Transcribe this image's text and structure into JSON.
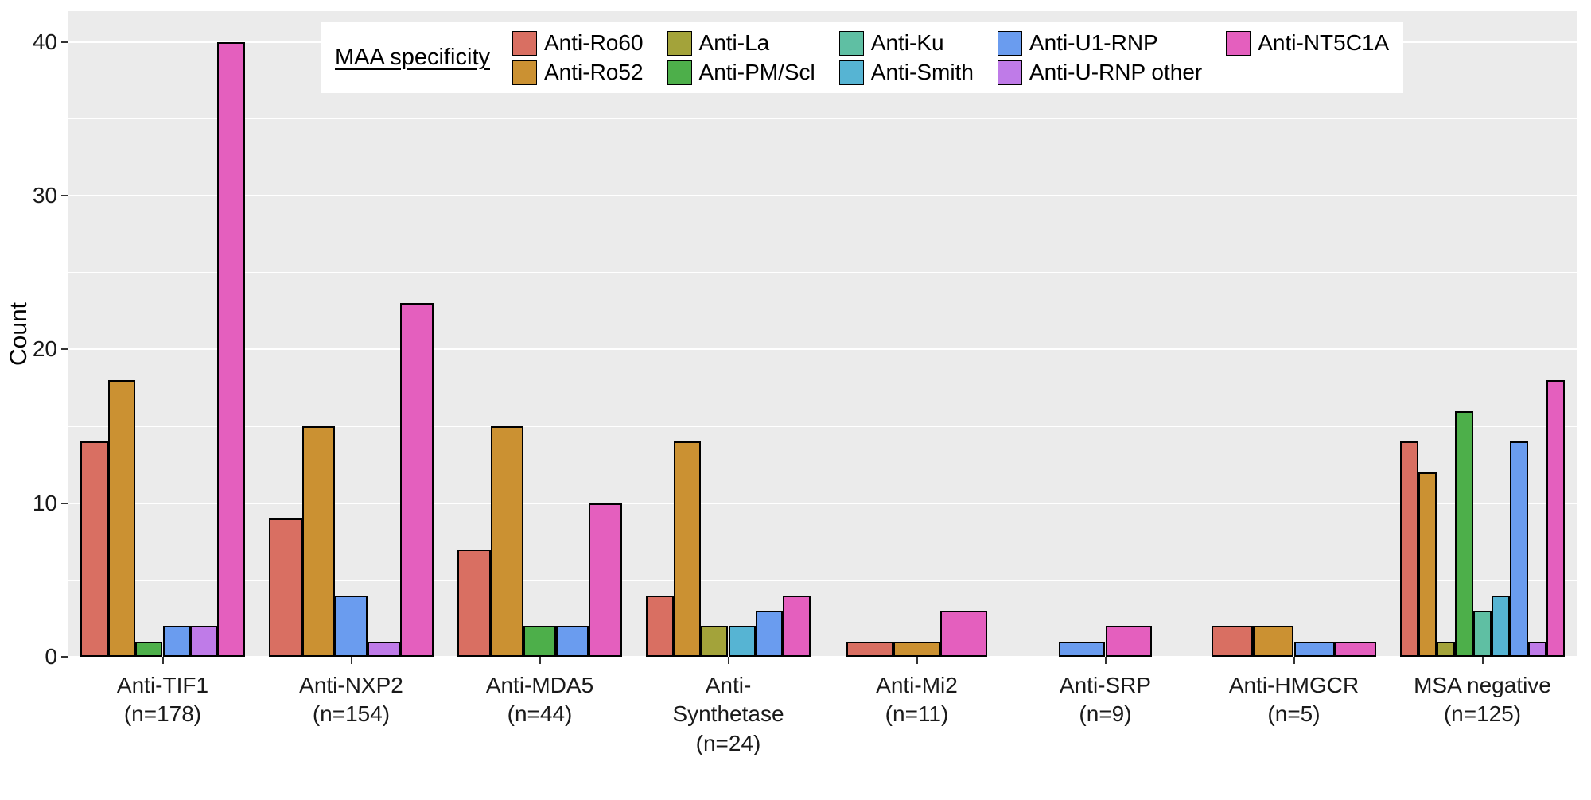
{
  "chart_data": {
    "type": "bar",
    "title": "",
    "xlabel": "",
    "ylabel": "Count",
    "ylim": [
      0,
      42
    ],
    "yticks": [
      0,
      10,
      20,
      30,
      40
    ],
    "yticks_minor": [
      5,
      15,
      25,
      35
    ],
    "grid": true,
    "plot_bg": "#EBEBEB",
    "grid_color": "#FFFFFF",
    "bar_outline": "#000000",
    "legend_title": "MAA specificity",
    "legend_position": "top-inside",
    "categories": [
      {
        "label": "Anti-TIF1 (n=178)",
        "lines": [
          "Anti-TIF1",
          "(n=178)"
        ]
      },
      {
        "label": "Anti-NXP2 (n=154)",
        "lines": [
          "Anti-NXP2",
          "(n=154)"
        ]
      },
      {
        "label": "Anti-MDA5 (n=44)",
        "lines": [
          "Anti-MDA5",
          "(n=44)"
        ]
      },
      {
        "label": "Anti-Synthetase (n=24)",
        "lines": [
          "Anti-",
          "Synthetase",
          "(n=24)"
        ]
      },
      {
        "label": "Anti-Mi2 (n=11)",
        "lines": [
          "Anti-Mi2",
          "(n=11)"
        ]
      },
      {
        "label": "Anti-SRP (n=9)",
        "lines": [
          "Anti-SRP",
          "(n=9)"
        ]
      },
      {
        "label": "Anti-HMGCR (n=5)",
        "lines": [
          "Anti-HMGCR",
          "(n=5)"
        ]
      },
      {
        "label": "MSA negative (n=125)",
        "lines": [
          "MSA negative",
          "(n=125)"
        ]
      }
    ],
    "series": [
      {
        "name": "Anti-Ro60",
        "color": "#D96F62",
        "values": [
          14,
          9,
          7,
          4,
          1,
          0,
          2,
          14
        ]
      },
      {
        "name": "Anti-Ro52",
        "color": "#CB9132",
        "values": [
          18,
          15,
          15,
          14,
          1,
          0,
          2,
          12
        ]
      },
      {
        "name": "Anti-La",
        "color": "#A3A33A",
        "values": [
          0,
          0,
          0,
          2,
          0,
          0,
          0,
          1
        ]
      },
      {
        "name": "Anti-PM/Scl",
        "color": "#4DAF4A",
        "values": [
          1,
          0,
          2,
          0,
          0,
          0,
          0,
          16
        ]
      },
      {
        "name": "Anti-Ku",
        "color": "#5FBFA3",
        "values": [
          0,
          0,
          0,
          0,
          0,
          0,
          0,
          3
        ]
      },
      {
        "name": "Anti-Smith",
        "color": "#56B4D3",
        "values": [
          0,
          0,
          0,
          2,
          0,
          0,
          0,
          4
        ]
      },
      {
        "name": "Anti-U1-RNP",
        "color": "#6A9CEF",
        "values": [
          2,
          4,
          2,
          3,
          0,
          1,
          1,
          14
        ]
      },
      {
        "name": "Anti-U-RNP other",
        "color": "#BF7BE8",
        "values": [
          2,
          1,
          0,
          0,
          0,
          0,
          0,
          1
        ]
      },
      {
        "name": "Anti-NT5C1A",
        "color": "#E45FBE",
        "values": [
          40,
          23,
          10,
          4,
          3,
          2,
          1,
          18
        ]
      }
    ],
    "legend_columns": [
      [
        "Anti-Ro60",
        "Anti-Ro52"
      ],
      [
        "Anti-La",
        "Anti-PM/Scl"
      ],
      [
        "Anti-Ku",
        "Anti-Smith"
      ],
      [
        "Anti-U1-RNP",
        "Anti-U-RNP other"
      ],
      [
        "Anti-NT5C1A"
      ]
    ]
  }
}
